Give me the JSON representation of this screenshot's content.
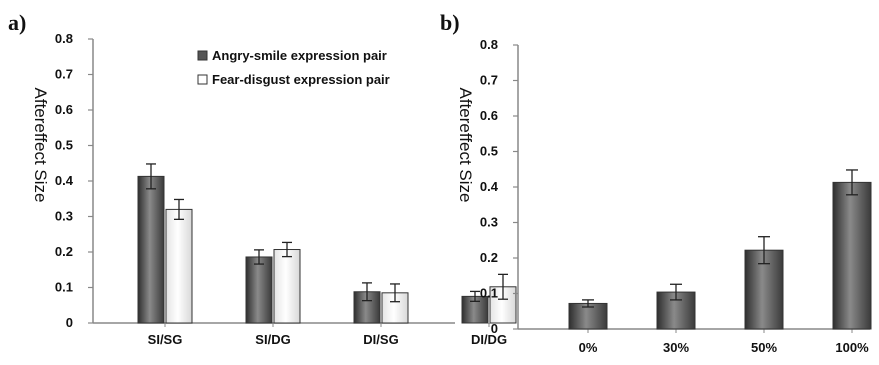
{
  "chart_data": [
    {
      "panel_label": "a)",
      "type": "bar",
      "ylabel": "Aftereffect Size",
      "ylim": [
        0,
        0.8
      ],
      "yticks": [
        "0",
        "0.1",
        "0.2",
        "0.3",
        "0.4",
        "0.5",
        "0.6",
        "0.7",
        "0.8"
      ],
      "categories": [
        "SI/SG",
        "SI/DG",
        "DI/SG",
        "DI/DG"
      ],
      "legend_position": "top-right",
      "series": [
        {
          "name": "Angry-smile expression pair",
          "color": "#4a4a4a",
          "values": [
            0.413,
            0.186,
            0.088,
            0.075
          ],
          "errors": [
            0.035,
            0.02,
            0.025,
            0.014
          ]
        },
        {
          "name": "Fear-disgust expression pair",
          "color": "#f2f2f2",
          "values": [
            0.32,
            0.207,
            0.085,
            0.102
          ],
          "errors": [
            0.028,
            0.02,
            0.025,
            0.035
          ]
        }
      ]
    },
    {
      "panel_label": "b)",
      "type": "bar",
      "ylabel": "Aftereffect Size",
      "ylim": [
        0,
        0.8
      ],
      "yticks": [
        "0",
        "0.1",
        "0.2",
        "0.3",
        "0.4",
        "0.5",
        "0.6",
        "0.7",
        "0.8"
      ],
      "categories": [
        "0%",
        "30%",
        "50%",
        "100%"
      ],
      "series": [
        {
          "color": "#4a4a4a",
          "values": [
            0.072,
            0.104,
            0.222,
            0.413
          ],
          "errors": [
            0.01,
            0.022,
            0.038,
            0.035
          ]
        }
      ]
    }
  ]
}
